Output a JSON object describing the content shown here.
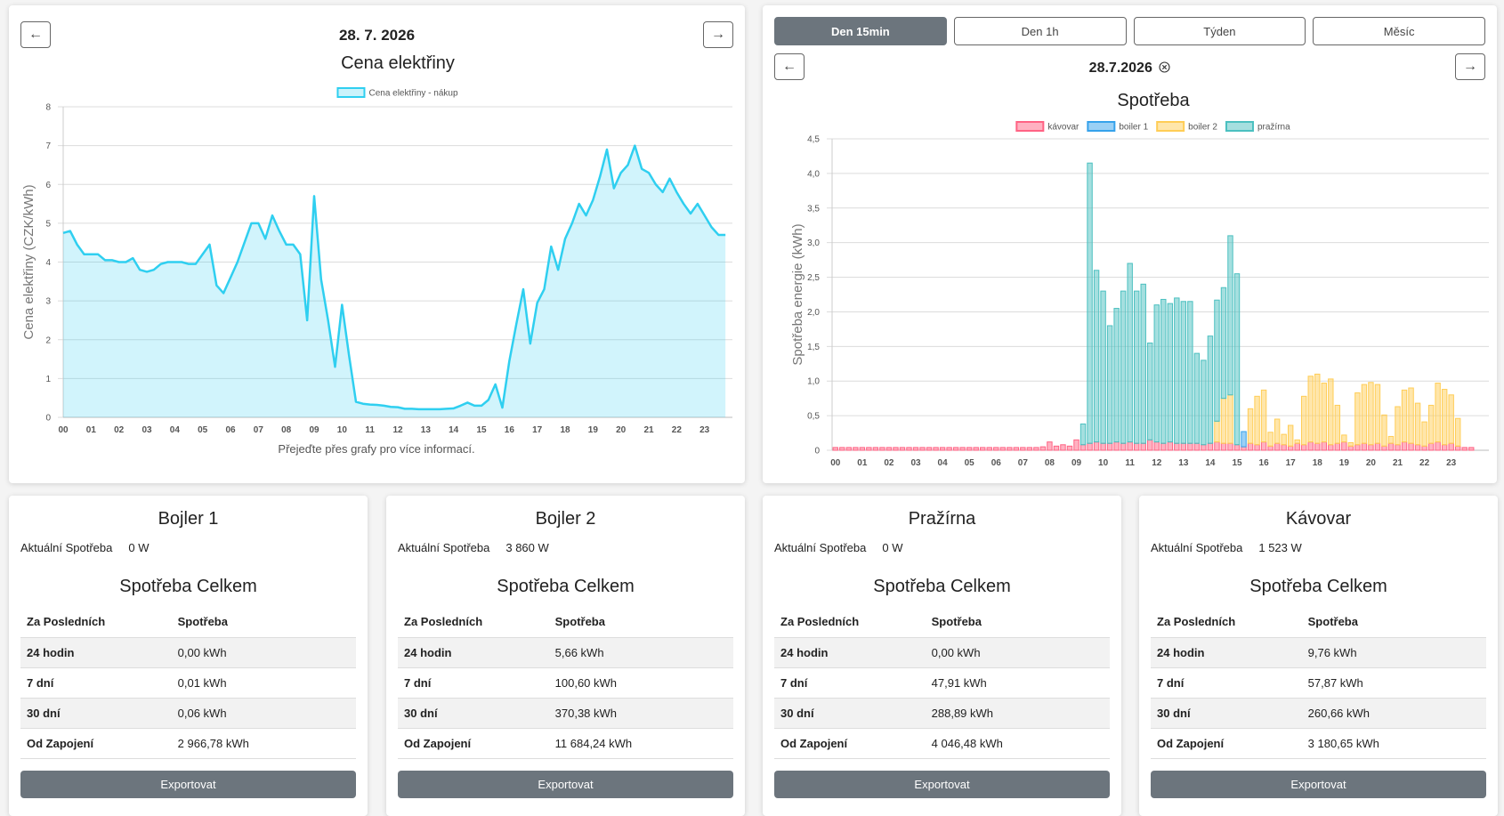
{
  "price_panel": {
    "prev": "←",
    "next": "→",
    "date": "28. 7. 2026",
    "hint": "Přejeďte přes grafy pro více informací."
  },
  "consumption_panel": {
    "tabs": [
      "Den 15min",
      "Den 1h",
      "Týden",
      "Měsíc"
    ],
    "active_tab": 0,
    "prev": "←",
    "next": "→",
    "date": "28.7.2026"
  },
  "chart_data": [
    {
      "type": "line",
      "title": "Cena elektřiny",
      "y_label": "Cena elektřiny (CZK/kWh)",
      "area": true,
      "grid": true,
      "legend": "top",
      "categories": [
        "00",
        null,
        null,
        null,
        "01",
        null,
        null,
        null,
        "02",
        null,
        null,
        null,
        "03",
        null,
        null,
        null,
        "04",
        null,
        null,
        null,
        "05",
        null,
        null,
        null,
        "06",
        null,
        null,
        null,
        "07",
        null,
        null,
        null,
        "08",
        null,
        null,
        null,
        "09",
        null,
        null,
        null,
        "10",
        null,
        null,
        null,
        "11",
        null,
        null,
        null,
        "12",
        null,
        null,
        null,
        "13",
        null,
        null,
        null,
        "14",
        null,
        null,
        null,
        "15",
        null,
        null,
        null,
        "16",
        null,
        null,
        null,
        "17",
        null,
        null,
        null,
        "18",
        null,
        null,
        null,
        "19",
        null,
        null,
        null,
        "20",
        null,
        null,
        null,
        "21",
        null,
        null,
        null,
        "22",
        null,
        null,
        null,
        "23",
        null,
        null,
        null
      ],
      "series": [
        {
          "name": "Cena elektřiny - nákup",
          "color": "#2fcff0",
          "values": [
            4.75,
            4.8,
            4.45,
            4.2,
            4.2,
            4.2,
            4.05,
            4.05,
            4.0,
            4.0,
            4.1,
            3.8,
            3.75,
            3.8,
            3.95,
            4.0,
            4.0,
            4.0,
            3.95,
            3.95,
            4.2,
            4.45,
            3.4,
            3.2,
            3.6,
            4.0,
            4.5,
            5.0,
            5.0,
            4.6,
            5.2,
            4.8,
            4.45,
            4.45,
            4.2,
            2.5,
            5.7,
            3.55,
            2.5,
            1.3,
            2.9,
            1.6,
            0.4,
            0.35,
            0.33,
            0.32,
            0.3,
            0.27,
            0.26,
            0.22,
            0.22,
            0.21,
            0.21,
            0.21,
            0.21,
            0.22,
            0.23,
            0.3,
            0.38,
            0.3,
            0.3,
            0.45,
            0.85,
            0.25,
            1.45,
            2.4,
            3.3,
            1.9,
            2.95,
            3.3,
            4.4,
            3.8,
            4.6,
            5.0,
            5.5,
            5.2,
            5.6,
            6.2,
            6.9,
            5.9,
            6.3,
            6.5,
            7.0,
            6.4,
            6.3,
            6.0,
            5.8,
            6.15,
            5.8,
            5.5,
            5.25,
            5.5,
            5.2,
            4.9,
            4.7,
            4.7
          ]
        }
      ],
      "ylim": [
        0,
        8
      ],
      "yticks": [
        0,
        1,
        2,
        3,
        4,
        5,
        6,
        7,
        8
      ]
    },
    {
      "type": "bar",
      "title": "Spotřeba",
      "y_label": "Spotřeba energie (kWh)",
      "stacked": true,
      "grid": true,
      "legend": "top",
      "categories": [
        "00",
        null,
        null,
        null,
        "01",
        null,
        null,
        null,
        "02",
        null,
        null,
        null,
        "03",
        null,
        null,
        null,
        "04",
        null,
        null,
        null,
        "05",
        null,
        null,
        null,
        "06",
        null,
        null,
        null,
        "07",
        null,
        null,
        null,
        "08",
        null,
        null,
        null,
        "09",
        null,
        null,
        null,
        "10",
        null,
        null,
        null,
        "11",
        null,
        null,
        null,
        "12",
        null,
        null,
        null,
        "13",
        null,
        null,
        null,
        "14",
        null,
        null,
        null,
        "15",
        null,
        null,
        null,
        "16",
        null,
        null,
        null,
        "17",
        null,
        null,
        null,
        "18",
        null,
        null,
        null,
        "19",
        null,
        null,
        null,
        "20",
        null,
        null,
        null,
        "21",
        null,
        null,
        null,
        "22",
        null,
        null,
        null,
        "23",
        null,
        null,
        null
      ],
      "series": [
        {
          "name": "kávovar",
          "color": "#ff6384",
          "values": [
            0.04,
            0.04,
            0.04,
            0.04,
            0.04,
            0.04,
            0.04,
            0.04,
            0.04,
            0.04,
            0.04,
            0.04,
            0.04,
            0.04,
            0.04,
            0.04,
            0.04,
            0.04,
            0.04,
            0.04,
            0.04,
            0.04,
            0.04,
            0.04,
            0.04,
            0.04,
            0.04,
            0.04,
            0.04,
            0.04,
            0.04,
            0.05,
            0.12,
            0.06,
            0.08,
            0.06,
            0.15,
            0.08,
            0.1,
            0.12,
            0.1,
            0.1,
            0.12,
            0.1,
            0.12,
            0.1,
            0.1,
            0.15,
            0.12,
            0.1,
            0.12,
            0.1,
            0.1,
            0.1,
            0.1,
            0.08,
            0.1,
            0.12,
            0.1,
            0.1,
            0.08,
            0.05,
            0.1,
            0.08,
            0.12,
            0.06,
            0.1,
            0.08,
            0.06,
            0.1,
            0.08,
            0.12,
            0.1,
            0.12,
            0.08,
            0.1,
            0.12,
            0.06,
            0.08,
            0.1,
            0.08,
            0.1,
            0.06,
            0.1,
            0.08,
            0.12,
            0.1,
            0.08,
            0.06,
            0.1,
            0.12,
            0.08,
            0.1,
            0.06,
            0.04,
            0.04
          ]
        },
        {
          "name": "boiler 1",
          "color": "#36a2eb",
          "values": [
            0,
            0,
            0,
            0,
            0,
            0,
            0,
            0,
            0,
            0,
            0,
            0,
            0,
            0,
            0,
            0,
            0,
            0,
            0,
            0,
            0,
            0,
            0,
            0,
            0,
            0,
            0,
            0,
            0,
            0,
            0,
            0,
            0,
            0,
            0,
            0,
            0,
            0,
            0,
            0,
            0,
            0,
            0,
            0,
            0,
            0,
            0,
            0,
            0,
            0,
            0,
            0,
            0,
            0,
            0,
            0,
            0,
            0,
            0,
            0,
            0,
            0.22,
            0,
            0,
            0,
            0,
            0,
            0,
            0,
            0,
            0,
            0,
            0,
            0,
            0,
            0,
            0,
            0,
            0,
            0,
            0,
            0,
            0,
            0,
            0,
            0,
            0,
            0,
            0,
            0,
            0,
            0,
            0,
            0,
            0,
            0
          ]
        },
        {
          "name": "boiler 2",
          "color": "#ffcd56",
          "values": [
            0,
            0,
            0,
            0,
            0,
            0,
            0,
            0,
            0,
            0,
            0,
            0,
            0,
            0,
            0,
            0,
            0,
            0,
            0,
            0,
            0,
            0,
            0,
            0,
            0,
            0,
            0,
            0,
            0,
            0,
            0,
            0,
            0,
            0,
            0,
            0,
            0,
            0,
            0,
            0,
            0,
            0,
            0,
            0,
            0,
            0,
            0,
            0,
            0,
            0,
            0,
            0,
            0,
            0,
            0,
            0,
            0,
            0.3,
            0.65,
            0.7,
            0,
            0,
            0.5,
            0.7,
            0.75,
            0.2,
            0.35,
            0.15,
            0.3,
            0.05,
            0.7,
            0.95,
            1.0,
            0.85,
            0.95,
            0.55,
            0.1,
            0.05,
            0.75,
            0.85,
            0.9,
            0.85,
            0.45,
            0.1,
            0.55,
            0.75,
            0.8,
            0.6,
            0.35,
            0.55,
            0.85,
            0.8,
            0.7,
            0.4,
            0,
            0
          ]
        },
        {
          "name": "pražírna",
          "color": "#4bc0c0",
          "values": [
            0,
            0,
            0,
            0,
            0,
            0,
            0,
            0,
            0,
            0,
            0,
            0,
            0,
            0,
            0,
            0,
            0,
            0,
            0,
            0,
            0,
            0,
            0,
            0,
            0,
            0,
            0,
            0,
            0,
            0,
            0,
            0,
            0,
            0,
            0,
            0,
            0,
            0.3,
            4.05,
            2.48,
            2.2,
            1.7,
            1.93,
            2.2,
            2.58,
            2.2,
            2.3,
            1.4,
            1.98,
            2.08,
            2.0,
            2.1,
            2.05,
            2.05,
            1.3,
            1.22,
            1.55,
            1.75,
            1.6,
            2.3,
            2.47,
            0,
            0,
            0,
            0,
            0,
            0,
            0,
            0,
            0,
            0,
            0,
            0,
            0,
            0,
            0,
            0,
            0,
            0,
            0,
            0,
            0,
            0,
            0,
            0,
            0,
            0,
            0,
            0,
            0,
            0,
            0,
            0,
            0,
            0,
            0
          ]
        }
      ],
      "ylim": [
        0,
        4.5
      ],
      "yticks": [
        0,
        {
          "value": 0.5,
          "label": "0,5"
        },
        {
          "value": 1,
          "label": "1,0"
        },
        {
          "value": 1.5,
          "label": "1,5"
        },
        {
          "value": 2,
          "label": "2,0"
        },
        {
          "value": 2.5,
          "label": "2,5"
        },
        {
          "value": 3,
          "label": "3,0"
        },
        {
          "value": 3.5,
          "label": "3,5"
        },
        {
          "value": 4,
          "label": "4,0"
        },
        {
          "value": 4.5,
          "label": "4,5"
        }
      ]
    }
  ],
  "cards": [
    {
      "title": "Bojler 1",
      "current_label": "Aktuální Spotřeba",
      "current_value": "0 W",
      "subtitle": "Spotřeba Celkem",
      "header": [
        "Za Posledních",
        "Spotřeba"
      ],
      "rows": [
        [
          "24 hodin",
          "0,00 kWh"
        ],
        [
          "7 dní",
          "0,01 kWh"
        ],
        [
          "30 dní",
          "0,06 kWh"
        ],
        [
          "Od Zapojení",
          "2 966,78 kWh"
        ]
      ],
      "button": "Exportovat"
    },
    {
      "title": "Bojler 2",
      "current_label": "Aktuální Spotřeba",
      "current_value": "3 860 W",
      "subtitle": "Spotřeba Celkem",
      "header": [
        "Za Posledních",
        "Spotřeba"
      ],
      "rows": [
        [
          "24 hodin",
          "5,66 kWh"
        ],
        [
          "7 dní",
          "100,60 kWh"
        ],
        [
          "30 dní",
          "370,38 kWh"
        ],
        [
          "Od Zapojení",
          "11 684,24 kWh"
        ]
      ],
      "button": "Exportovat"
    },
    {
      "title": "Pražírna",
      "current_label": "Aktuální Spotřeba",
      "current_value": "0 W",
      "subtitle": "Spotřeba Celkem",
      "header": [
        "Za Posledních",
        "Spotřeba"
      ],
      "rows": [
        [
          "24 hodin",
          "0,00 kWh"
        ],
        [
          "7 dní",
          "47,91 kWh"
        ],
        [
          "30 dní",
          "288,89 kWh"
        ],
        [
          "Od Zapojení",
          "4 046,48 kWh"
        ]
      ],
      "button": "Exportovat"
    },
    {
      "title": "Kávovar",
      "current_label": "Aktuální Spotřeba",
      "current_value": "1 523 W",
      "subtitle": "Spotřeba Celkem",
      "header": [
        "Za Posledních",
        "Spotřeba"
      ],
      "rows": [
        [
          "24 hodin",
          "9,76 kWh"
        ],
        [
          "7 dní",
          "57,87 kWh"
        ],
        [
          "30 dní",
          "260,66 kWh"
        ],
        [
          "Od Zapojení",
          "3 180,65 kWh"
        ]
      ],
      "button": "Exportovat"
    }
  ]
}
